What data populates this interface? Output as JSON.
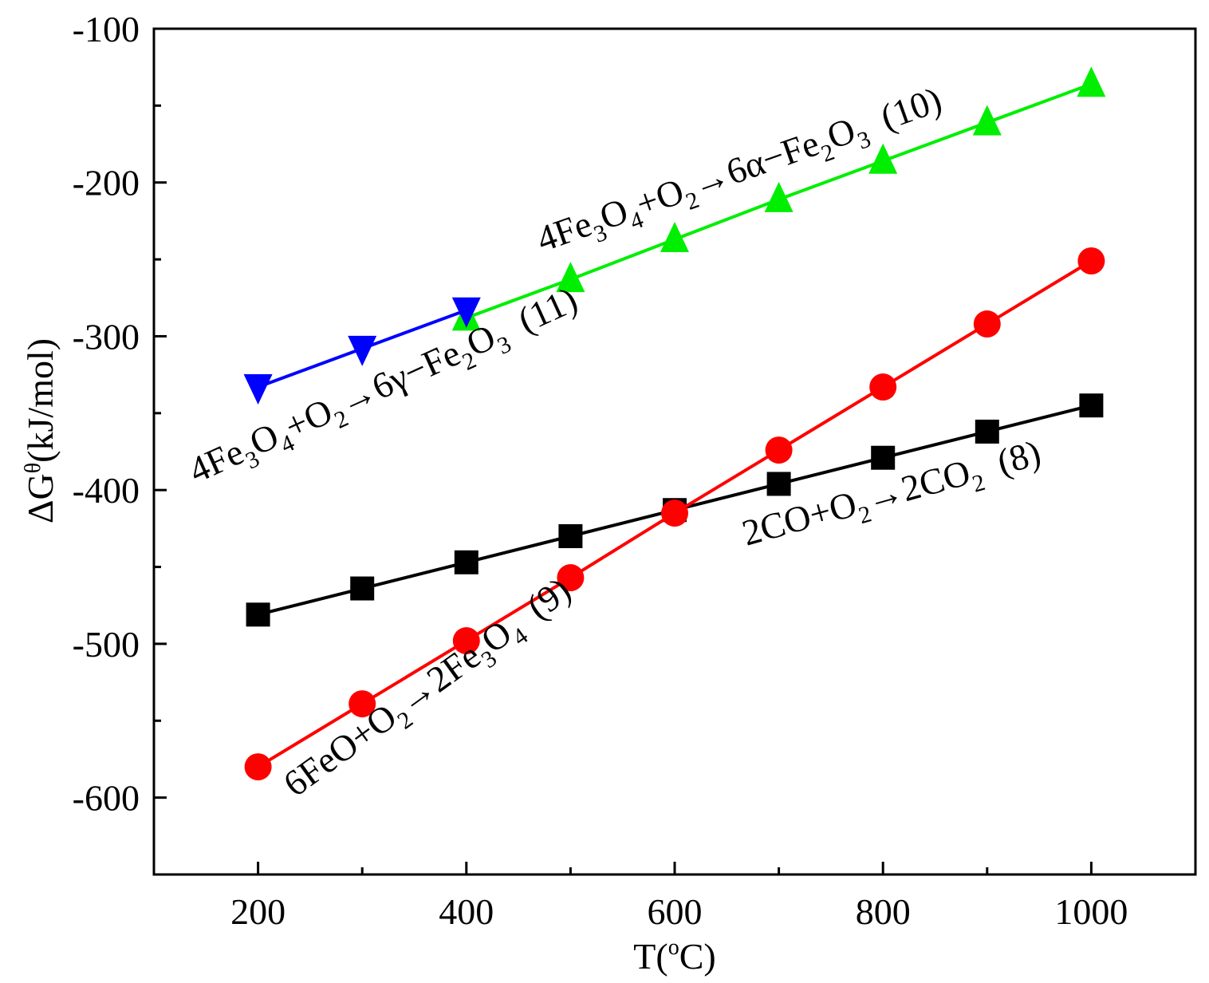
{
  "chart_data": {
    "type": "line",
    "title": "",
    "xlabel": {
      "main": "T(",
      "sup": "o",
      "unit": "C)"
    },
    "ylabel": {
      "delta": "ΔG",
      "sup": "θ",
      "unit": "(kJ/mol)"
    },
    "xlim": [
      100,
      1100
    ],
    "ylim": [
      -650,
      -100
    ],
    "xticks": [
      200,
      400,
      600,
      800,
      1000
    ],
    "yticks": [
      -100,
      -200,
      -300,
      -400,
      -500,
      -600
    ],
    "x_minor_ticks": [
      300,
      500,
      700,
      900
    ],
    "y_minor_ticks": [
      -150,
      -250,
      -350,
      -450,
      -550
    ],
    "series": [
      {
        "name": "2CO+O2→2CO2 (8)",
        "color": "#000000",
        "marker": "square",
        "x": [
          200,
          300,
          400,
          500,
          600,
          700,
          800,
          900,
          1000
        ],
        "y": [
          -481,
          -464,
          -447,
          -430,
          -413,
          -396,
          -379,
          -362,
          -345
        ]
      },
      {
        "name": "6FeO+O2→2Fe3O4 (9)",
        "color": "#ff0000",
        "marker": "circle",
        "x": [
          200,
          300,
          400,
          500,
          600,
          700,
          800,
          900,
          1000
        ],
        "y": [
          -580,
          -539,
          -498,
          -457,
          -415,
          -374,
          -333,
          -292,
          -251
        ]
      },
      {
        "name": "4Fe3O4+O2→6α-Fe2O3 (10)",
        "color": "#00ee00",
        "marker": "triangle-up",
        "x": [
          400,
          500,
          600,
          700,
          800,
          900,
          1000
        ],
        "y": [
          -288,
          -263,
          -237,
          -211,
          -186,
          -161,
          -136
        ]
      },
      {
        "name": "4Fe3O4+O2→6γ-Fe2O3 (11)",
        "color": "#0000ff",
        "marker": "triangle-down",
        "x": [
          200,
          300,
          400
        ],
        "y": [
          -333,
          -308,
          -283
        ]
      }
    ],
    "annotations": {
      "eq8": {
        "p1": "2CO+O",
        "s1": "2",
        "p2": "→2CO",
        "s2": "2",
        "p3": "  (8)"
      },
      "eq9": {
        "p1": "6FeO+O",
        "s1": "2",
        "p2": "→2Fe",
        "s2": "3",
        "p3": "O",
        "s3": "4",
        "p4": "  (9)"
      },
      "eq10": {
        "p1": "4Fe",
        "s1": "3",
        "p2": "O",
        "s2": "4",
        "p3": "+O",
        "s3": "2",
        "p4": "→6α−Fe",
        "s4": "2",
        "p5": "O",
        "s5": "3",
        "p6": "  (10)"
      },
      "eq11": {
        "p1": "4Fe",
        "s1": "3",
        "p2": "O",
        "s2": "4",
        "p3": "+O",
        "s3": "2",
        "p4": "→6γ−Fe",
        "s4": "2",
        "p5": "O",
        "s5": "3",
        "p6": "  (11)"
      }
    }
  }
}
